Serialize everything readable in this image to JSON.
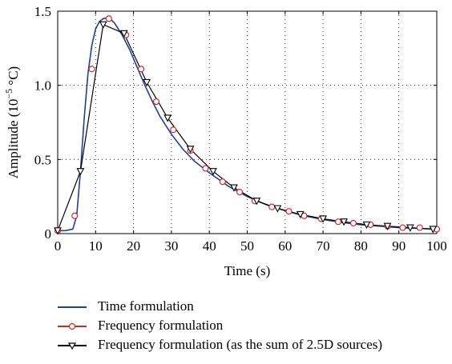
{
  "chart_data": {
    "type": "line",
    "xlabel": "Time (s)",
    "ylabel_prefix": "Amplitude (10",
    "ylabel_exp": "−5",
    "ylabel_suffix": " °C)",
    "xlim": [
      0,
      100
    ],
    "ylim": [
      0,
      1.5
    ],
    "xticks": [
      0,
      10,
      20,
      30,
      40,
      50,
      60,
      70,
      80,
      90,
      100
    ],
    "yticks": [
      0,
      0.5,
      1.0,
      1.5
    ],
    "ytick_labels": [
      "0",
      "0.5",
      "1.0",
      "1.5"
    ],
    "grid": "dotted",
    "legend_position": "below",
    "series": [
      {
        "name": "Time formulation",
        "color": "#1f3f99",
        "marker": "none",
        "x": [
          0,
          2,
          4,
          5,
          6,
          7,
          8,
          9,
          10,
          11,
          12,
          13,
          14,
          15,
          17,
          19,
          21,
          23,
          25,
          27,
          30,
          33,
          36,
          40,
          45,
          50,
          55,
          60,
          65,
          70,
          75,
          80,
          85,
          90,
          95,
          100
        ],
        "y": [
          0.02,
          0.02,
          0.03,
          0.12,
          0.42,
          0.78,
          1.08,
          1.27,
          1.38,
          1.43,
          1.45,
          1.455,
          1.445,
          1.42,
          1.34,
          1.24,
          1.12,
          1.0,
          0.89,
          0.79,
          0.67,
          0.57,
          0.49,
          0.41,
          0.32,
          0.25,
          0.195,
          0.155,
          0.12,
          0.095,
          0.075,
          0.06,
          0.05,
          0.04,
          0.035,
          0.03
        ]
      },
      {
        "name": "Frequency formulation",
        "color": "#d62728",
        "marker": "circle",
        "x": [
          0,
          4.5,
          9,
          13.5,
          18,
          22,
          26,
          30.5,
          35,
          39,
          43.5,
          48,
          52,
          56.5,
          61,
          65,
          69.5,
          74,
          78,
          82.5,
          87,
          91,
          95.5,
          100
        ],
        "y": [
          0.02,
          0.12,
          1.11,
          1.45,
          1.34,
          1.11,
          0.89,
          0.7,
          0.56,
          0.44,
          0.35,
          0.28,
          0.22,
          0.18,
          0.15,
          0.12,
          0.1,
          0.08,
          0.07,
          0.06,
          0.05,
          0.04,
          0.04,
          0.03
        ]
      },
      {
        "name": "Frequency formulation (as the sum of 2.5D sources)",
        "color": "#000000",
        "marker": "triangle-down",
        "x": [
          0,
          6,
          12,
          17.5,
          23.5,
          29,
          35,
          41,
          46.5,
          52.5,
          58,
          64,
          70,
          75.5,
          81.5,
          87,
          93,
          99
        ],
        "y": [
          0.02,
          0.42,
          1.41,
          1.35,
          1.02,
          0.78,
          0.57,
          0.42,
          0.31,
          0.22,
          0.17,
          0.13,
          0.1,
          0.08,
          0.06,
          0.05,
          0.04,
          0.03
        ]
      }
    ]
  }
}
